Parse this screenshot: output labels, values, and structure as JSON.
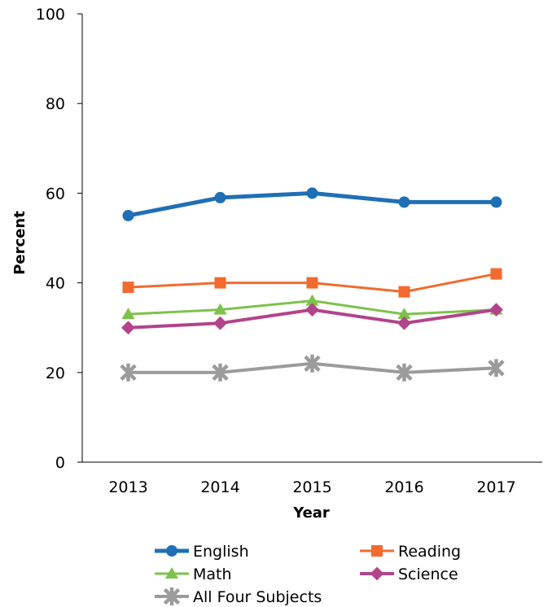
{
  "chart_data": {
    "type": "line",
    "title": "",
    "xlabel": "Year",
    "ylabel": "Percent",
    "categories": [
      "2013",
      "2014",
      "2015",
      "2016",
      "2017"
    ],
    "ylim": [
      0,
      100
    ],
    "yticks": [
      0,
      20,
      40,
      60,
      80,
      100
    ],
    "grid": false,
    "legend_position": "bottom",
    "series": [
      {
        "name": "English",
        "values": [
          55,
          59,
          60,
          58,
          58
        ],
        "color": "#1f6fb5",
        "marker": "circle"
      },
      {
        "name": "Reading",
        "values": [
          39,
          40,
          40,
          38,
          42
        ],
        "color": "#f26a2e",
        "marker": "square"
      },
      {
        "name": "Math",
        "values": [
          33,
          34,
          36,
          33,
          34
        ],
        "color": "#7dc24b",
        "marker": "triangle"
      },
      {
        "name": "Science",
        "values": [
          30,
          31,
          34,
          31,
          34
        ],
        "color": "#b3438a",
        "marker": "diamond"
      },
      {
        "name": "All Four Subjects",
        "values": [
          20,
          20,
          22,
          20,
          21
        ],
        "color": "#9b9b9b",
        "marker": "star"
      }
    ]
  }
}
